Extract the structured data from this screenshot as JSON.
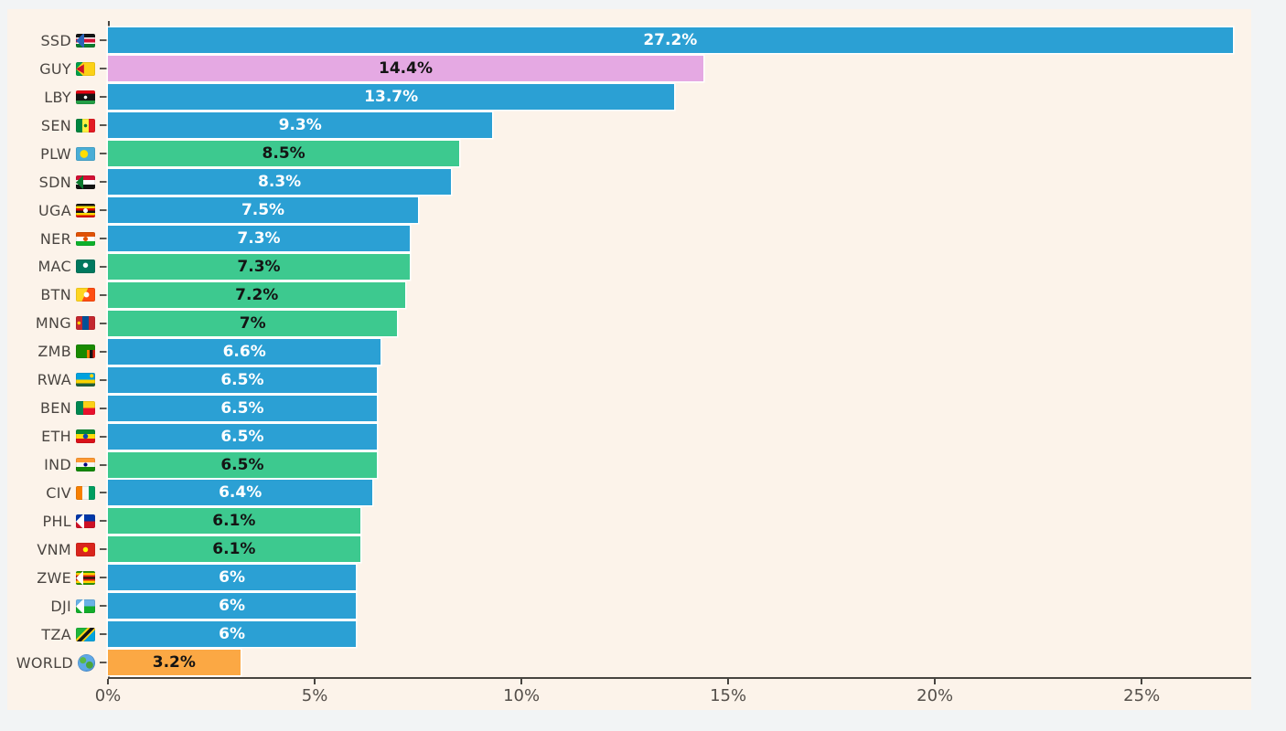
{
  "page": {
    "background": "#f2f4f5",
    "panel_background": "#fcf3ea",
    "axis_color": "#474440"
  },
  "colors": {
    "blue": "#2ba0d4",
    "green": "#3dc98f",
    "pink": "#e5a9e3",
    "orange": "#fba844",
    "value_text": {
      "blue": "#ffffff",
      "green": "#141414",
      "pink": "#141414",
      "orange": "#141414"
    }
  },
  "chart_data": {
    "type": "bar",
    "orientation": "horizontal",
    "title": "",
    "xlabel": "",
    "ylabel": "",
    "value_suffix": "%",
    "axis_max": 27.65,
    "xlim": [
      0,
      27.65
    ],
    "grid": false,
    "legend": false,
    "x_ticks": [
      "0%",
      "5%",
      "10%",
      "15%",
      "20%",
      "25%"
    ],
    "x_tick_values": [
      0,
      5,
      10,
      15,
      20,
      25
    ],
    "items": [
      {
        "code": "SSD",
        "label": "SSD",
        "value": 27.2,
        "display": "27.2%",
        "color": "blue"
      },
      {
        "code": "GUY",
        "label": "GUY",
        "value": 14.4,
        "display": "14.4%",
        "color": "pink"
      },
      {
        "code": "LBY",
        "label": "LBY",
        "value": 13.7,
        "display": "13.7%",
        "color": "blue"
      },
      {
        "code": "SEN",
        "label": "SEN",
        "value": 9.3,
        "display": "9.3%",
        "color": "blue"
      },
      {
        "code": "PLW",
        "label": "PLW",
        "value": 8.5,
        "display": "8.5%",
        "color": "green"
      },
      {
        "code": "SDN",
        "label": "SDN",
        "value": 8.3,
        "display": "8.3%",
        "color": "blue"
      },
      {
        "code": "UGA",
        "label": "UGA",
        "value": 7.5,
        "display": "7.5%",
        "color": "blue"
      },
      {
        "code": "NER",
        "label": "NER",
        "value": 7.3,
        "display": "7.3%",
        "color": "blue"
      },
      {
        "code": "MAC",
        "label": "MAC",
        "value": 7.3,
        "display": "7.3%",
        "color": "green"
      },
      {
        "code": "BTN",
        "label": "BTN",
        "value": 7.2,
        "display": "7.2%",
        "color": "green"
      },
      {
        "code": "MNG",
        "label": "MNG",
        "value": 7.0,
        "display": "7%",
        "color": "green"
      },
      {
        "code": "ZMB",
        "label": "ZMB",
        "value": 6.6,
        "display": "6.6%",
        "color": "blue"
      },
      {
        "code": "RWA",
        "label": "RWA",
        "value": 6.5,
        "display": "6.5%",
        "color": "blue"
      },
      {
        "code": "BEN",
        "label": "BEN",
        "value": 6.5,
        "display": "6.5%",
        "color": "blue"
      },
      {
        "code": "ETH",
        "label": "ETH",
        "value": 6.5,
        "display": "6.5%",
        "color": "blue"
      },
      {
        "code": "IND",
        "label": "IND",
        "value": 6.5,
        "display": "6.5%",
        "color": "green"
      },
      {
        "code": "CIV",
        "label": "CIV",
        "value": 6.4,
        "display": "6.4%",
        "color": "blue"
      },
      {
        "code": "PHL",
        "label": "PHL",
        "value": 6.1,
        "display": "6.1%",
        "color": "green"
      },
      {
        "code": "VNM",
        "label": "VNM",
        "value": 6.1,
        "display": "6.1%",
        "color": "green"
      },
      {
        "code": "ZWE",
        "label": "ZWE",
        "value": 6.0,
        "display": "6%",
        "color": "blue"
      },
      {
        "code": "DJI",
        "label": "DJI",
        "value": 6.0,
        "display": "6%",
        "color": "blue"
      },
      {
        "code": "TZA",
        "label": "TZA",
        "value": 6.0,
        "display": "6%",
        "color": "blue"
      },
      {
        "code": "WORLD",
        "label": "WORLD",
        "value": 3.2,
        "display": "3.2%",
        "color": "orange"
      }
    ]
  }
}
